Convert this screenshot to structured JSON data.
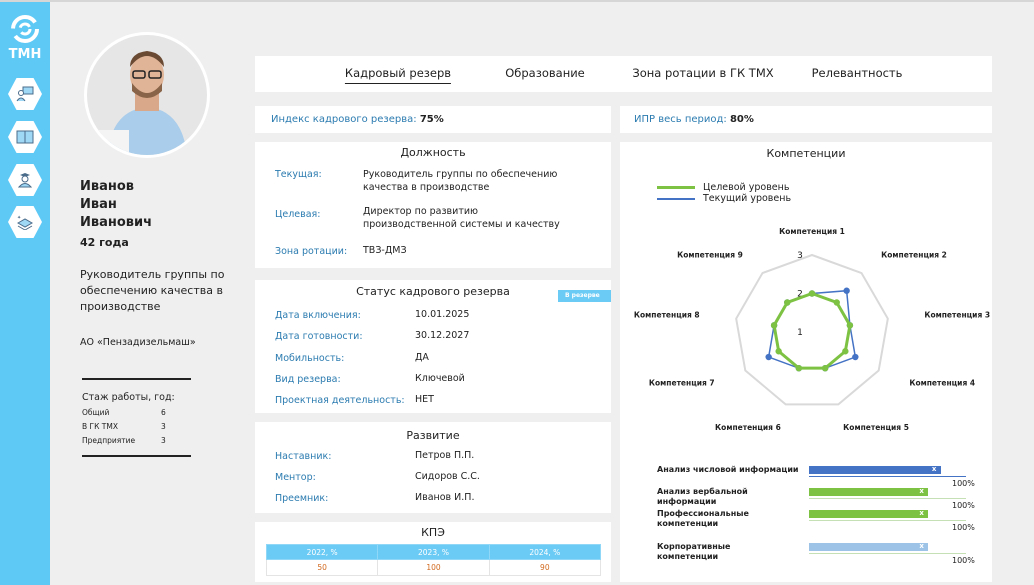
{
  "sidebar": {
    "logo_text": "ТМН",
    "icons": [
      "presentation-icon",
      "book-icon",
      "graduate-icon",
      "layers-icon"
    ]
  },
  "profile": {
    "last_name": "Иванов",
    "first_name": "Иван",
    "patronymic": "Иванович",
    "age": "42 года",
    "position": "Руководитель группы по обеспечению качества в производстве",
    "company": "АО «Пензадизельмаш»",
    "experience_title": "Стаж работы, год:",
    "experience": [
      {
        "label": "Общий",
        "value": "6"
      },
      {
        "label": "В ГК ТМХ",
        "value": "3"
      },
      {
        "label": "Предприятие",
        "value": "3"
      }
    ]
  },
  "tabs": [
    {
      "label": "Кадровый резерв",
      "active": true
    },
    {
      "label": "Образование"
    },
    {
      "label": "Зона ротации в ГК ТМХ"
    },
    {
      "label": "Релевантность"
    }
  ],
  "index": {
    "label": "Индекс кадрового резерва:",
    "value": "75%"
  },
  "ipr": {
    "label": "ИПР весь период:",
    "value": "80%"
  },
  "position_panel": {
    "title": "Должность",
    "rows": [
      {
        "label": "Текущая:",
        "value": "Руководитель группы по обеспечению качества в производстве"
      },
      {
        "label": "Целевая:",
        "value": "Директор по развитию производственной системы и качеству"
      },
      {
        "label": "Зона ротации:",
        "value": "ТВЗ-ДМЗ"
      }
    ]
  },
  "status_panel": {
    "title": "Статус кадрового резерва",
    "badge": "В резерве",
    "rows": [
      {
        "label": "Дата включения:",
        "value": "10.01.2025"
      },
      {
        "label": "Дата готовности:",
        "value": "30.12.2027"
      },
      {
        "label": "Мобильность:",
        "value": "ДА"
      },
      {
        "label": "Вид резерва:",
        "value": "Ключевой"
      },
      {
        "label": "Проектная деятельность:",
        "value": "НЕТ"
      }
    ]
  },
  "development_panel": {
    "title": "Развитие",
    "rows": [
      {
        "label": "Наставник:",
        "value": "Петров П.П."
      },
      {
        "label": "Ментор:",
        "value": "Сидоров С.С."
      },
      {
        "label": "Преемник:",
        "value": "Иванов И.П."
      }
    ]
  },
  "kpe": {
    "title": "КПЭ",
    "headers": [
      "2022, %",
      "2023, %",
      "2024, %"
    ],
    "values": [
      "50",
      "100",
      "90"
    ]
  },
  "chart_data": {
    "type": "radar",
    "title": "Компетенции",
    "categories": [
      "Компетенция 1",
      "Компетенция 2",
      "Компетенция 3",
      "Компетенция 4",
      "Компетенция 5",
      "Компетенция 6",
      "Компетенция 7",
      "Компетенция 8",
      "Компетенция 9"
    ],
    "ticks": [
      "1",
      "2",
      "3"
    ],
    "range": [
      1,
      3
    ],
    "legend": "top-left",
    "series": [
      {
        "name": "Целевой уровень",
        "color": "#7dc242",
        "values": [
          2,
          2,
          2,
          2,
          2,
          2,
          2,
          2,
          2
        ]
      },
      {
        "name": "Текущий уровень",
        "color": "#4472c4",
        "values": [
          2,
          2.4,
          2,
          2.3,
          2,
          2,
          2.3,
          2,
          2
        ]
      }
    ]
  },
  "bars": [
    {
      "label": "Анализ числовой информации",
      "fill": 0.84,
      "color": "#4472c4",
      "track": "#4472c4",
      "marker": "x",
      "pct": "100%"
    },
    {
      "label": "Анализ вербальной информации",
      "fill": 0.76,
      "color": "#7dc242",
      "track": "#c5e0b4",
      "marker": "x",
      "pct": "100%"
    },
    {
      "label": "Профессиональные компетенции",
      "fill": 0.76,
      "color": "#7dc242",
      "track": "#c5e0b4",
      "marker": "x",
      "pct": "100%"
    },
    {
      "label": "Корпоративные компетенции",
      "fill": 0.76,
      "color": "#9dc3e6",
      "track": "#c5e0b4",
      "marker": "x",
      "pct": "100%"
    }
  ]
}
